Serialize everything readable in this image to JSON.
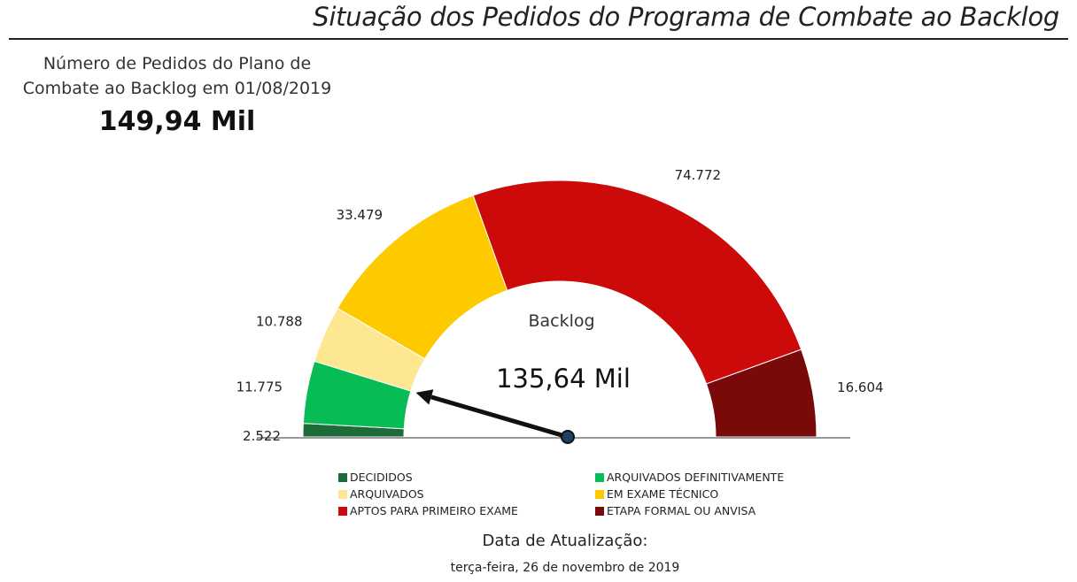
{
  "header": {
    "title": "Situação dos Pedidos do Programa de Combate ao Backlog"
  },
  "kpi": {
    "label": "Número de Pedidos do Plano de Combate ao Backlog em 01/08/2019",
    "value": "149,94 Mil"
  },
  "chart_data": {
    "type": "gauge",
    "title": "Backlog",
    "center_value": "135,64 Mil",
    "categories": [
      "DECIDIDOS",
      "ARQUIVADOS DEFINITIVAMENTE",
      "ARQUIVADOS",
      "EM EXAME TÉCNICO",
      "APTOS PARA PRIMEIRO EXAME",
      "ETAPA FORMAL OU ANVISA"
    ],
    "values": [
      2522,
      11775,
      10788,
      33479,
      74772,
      16604
    ],
    "labels": [
      "2.522",
      "11.775",
      "10.788",
      "33.479",
      "74.772",
      "16.604"
    ],
    "colors": [
      "#1e6b3a",
      "#07bb55",
      "#fde891",
      "#fdca00",
      "#cc0a0a",
      "#7a0a0a"
    ],
    "needle_value": 14297,
    "legend_placement": "bottom"
  },
  "legend_order": [
    0,
    1,
    2,
    3,
    4,
    5
  ],
  "footer": {
    "label": "Data de Atualização:",
    "date": "terça-feira, 26 de novembro de 2019"
  }
}
